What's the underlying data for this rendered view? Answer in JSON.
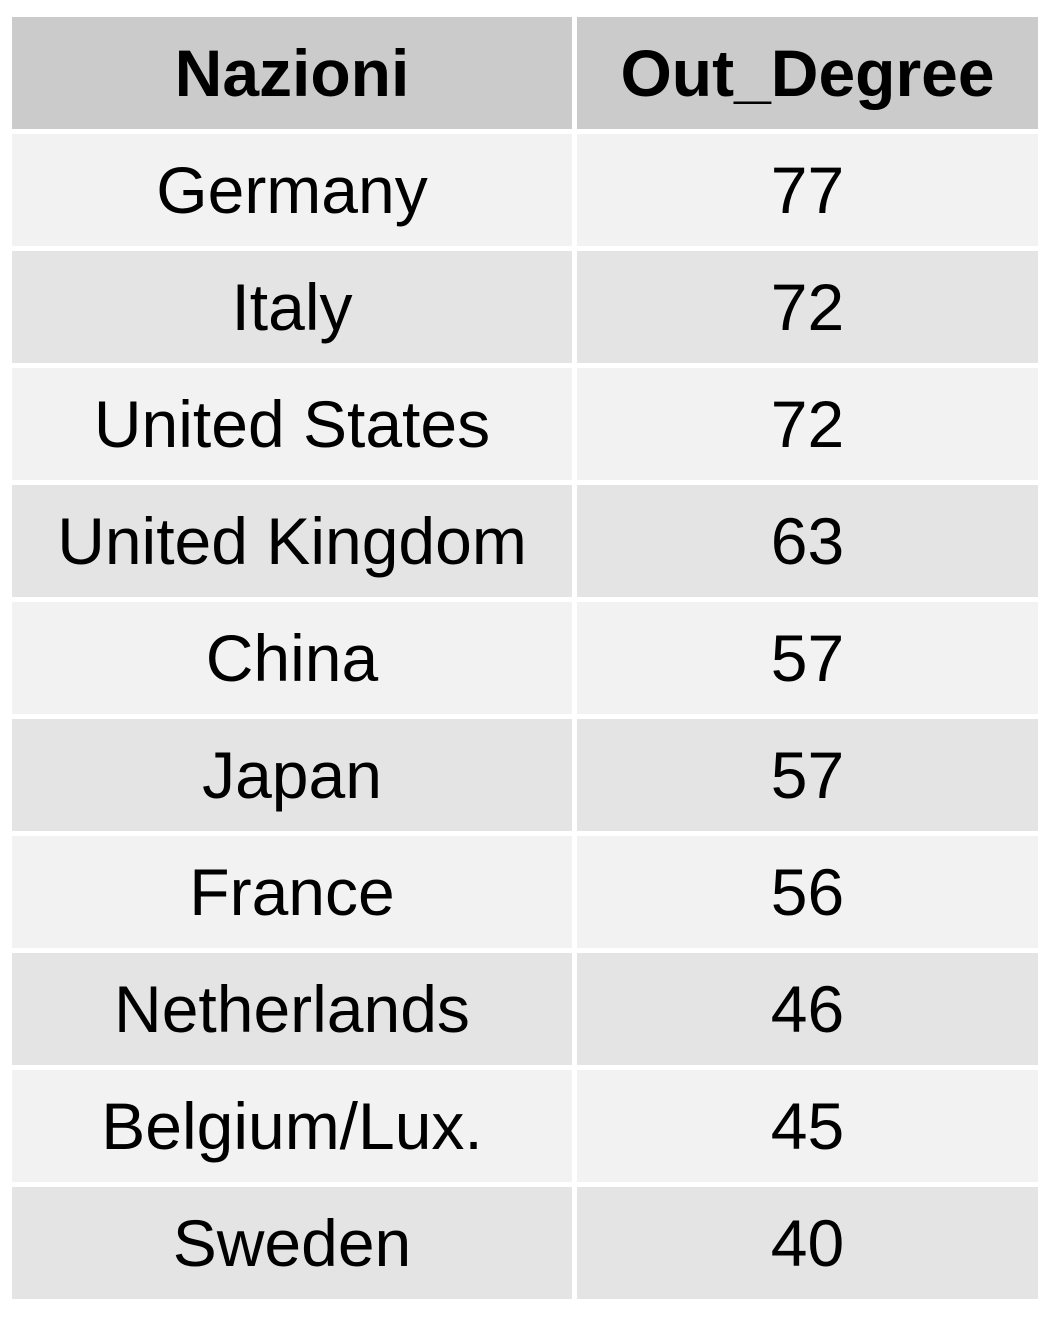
{
  "chart_data": {
    "type": "table",
    "columns": [
      "Nazioni",
      "Out_Degree"
    ],
    "rows": [
      {
        "country": "Germany",
        "out_degree": "77"
      },
      {
        "country": "Italy",
        "out_degree": "72"
      },
      {
        "country": "United States",
        "out_degree": "72"
      },
      {
        "country": "United Kingdom",
        "out_degree": "63"
      },
      {
        "country": "China",
        "out_degree": "57"
      },
      {
        "country": "Japan",
        "out_degree": "57"
      },
      {
        "country": "France",
        "out_degree": "56"
      },
      {
        "country": "Netherlands",
        "out_degree": "46"
      },
      {
        "country": "Belgium/Lux.",
        "out_degree": "45"
      },
      {
        "country": "Sweden",
        "out_degree": "40"
      }
    ]
  },
  "colors": {
    "header_bg": "#cbcbcb",
    "row_light": "#f2f2f2",
    "row_dark": "#e4e4e4",
    "divider": "#ffffff",
    "text": "#000000"
  }
}
